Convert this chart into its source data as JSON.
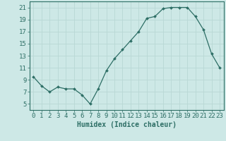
{
  "x": [
    0,
    1,
    2,
    3,
    4,
    5,
    6,
    7,
    8,
    9,
    10,
    11,
    12,
    13,
    14,
    15,
    16,
    17,
    18,
    19,
    20,
    21,
    22,
    23
  ],
  "y": [
    9.5,
    8.0,
    7.0,
    7.8,
    7.5,
    7.5,
    6.5,
    5.0,
    7.5,
    10.5,
    12.5,
    14.0,
    15.5,
    17.0,
    19.2,
    19.5,
    20.8,
    21.0,
    21.0,
    21.0,
    19.5,
    17.3,
    13.3,
    11.0
  ],
  "line_color": "#2d6e65",
  "marker": "D",
  "marker_size": 2.0,
  "bg_color": "#cde8e6",
  "grid_color": "#b8d8d5",
  "tick_color": "#2d6e65",
  "xlabel": "Humidex (Indice chaleur)",
  "xlabel_fontsize": 7,
  "ylim": [
    4,
    22
  ],
  "xlim": [
    -0.5,
    23.5
  ],
  "yticks": [
    5,
    7,
    9,
    11,
    13,
    15,
    17,
    19,
    21
  ],
  "xticks": [
    0,
    1,
    2,
    3,
    4,
    5,
    6,
    7,
    8,
    9,
    10,
    11,
    12,
    13,
    14,
    15,
    16,
    17,
    18,
    19,
    20,
    21,
    22,
    23
  ],
  "tick_fontsize": 6.5
}
